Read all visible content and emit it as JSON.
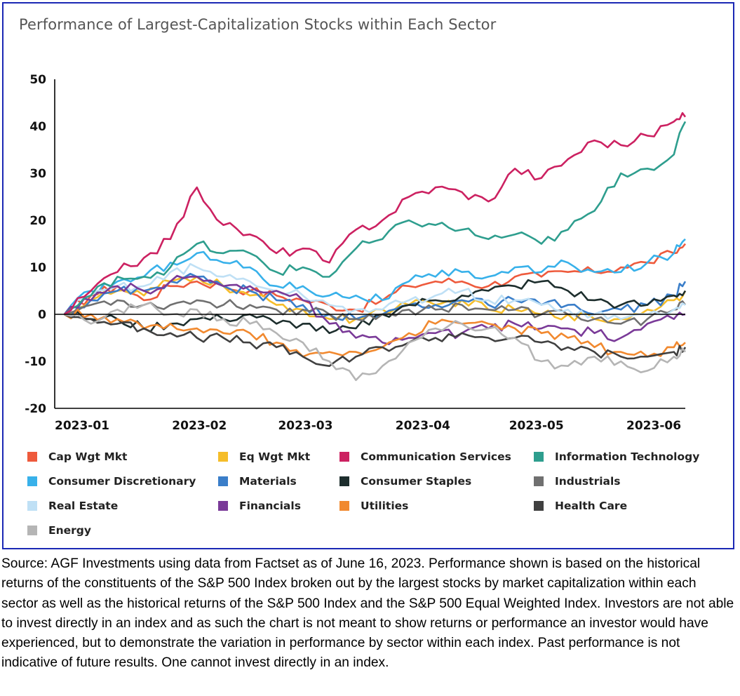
{
  "chart_data": {
    "type": "line",
    "title": "Performance of Largest-Capitalization Stocks within Each Sector",
    "xlabel": "",
    "ylabel": "",
    "ylim": [
      -20,
      50
    ],
    "yticks": [
      50,
      40,
      30,
      20,
      10,
      0,
      -10,
      -20
    ],
    "xticks": [
      "2023-01",
      "2023-02",
      "2023-03",
      "2023-04",
      "2023-05",
      "2023-06"
    ],
    "x": [
      "2023-01-03",
      "2023-01-10",
      "2023-01-17",
      "2023-01-24",
      "2023-01-31",
      "2023-02-07",
      "2023-02-14",
      "2023-02-21",
      "2023-02-28",
      "2023-03-07",
      "2023-03-14",
      "2023-03-21",
      "2023-03-28",
      "2023-04-04",
      "2023-04-11",
      "2023-04-18",
      "2023-04-25",
      "2023-05-02",
      "2023-05-09",
      "2023-05-16",
      "2023-05-23",
      "2023-05-30",
      "2023-06-06",
      "2023-06-13",
      "2023-06-16"
    ],
    "grid": false,
    "legend_position": "bottom",
    "series": [
      {
        "name": "Cap Wgt Mkt",
        "color": "#ee5a3c",
        "values": [
          0,
          4,
          6,
          3,
          6,
          7,
          6,
          5,
          4,
          3,
          2,
          1,
          3,
          6,
          7,
          7,
          6,
          8,
          8,
          9,
          9,
          10,
          11,
          13,
          15
        ]
      },
      {
        "name": "Eq Wgt Mkt",
        "color": "#f5bd2a",
        "values": [
          0,
          3,
          5,
          4,
          7,
          8,
          6,
          4,
          2,
          1,
          -1,
          -1,
          1,
          2,
          2,
          3,
          1,
          1,
          0,
          0,
          -1,
          -1,
          1,
          3,
          5
        ]
      },
      {
        "name": "Communication Services",
        "color": "#cc2161",
        "values": [
          0,
          5,
          9,
          12,
          16,
          27,
          19,
          17,
          13,
          14,
          11,
          18,
          20,
          25,
          27,
          26,
          24,
          31,
          29,
          33,
          37,
          36,
          38,
          41,
          42
        ]
      },
      {
        "name": "Information Technology",
        "color": "#2e9e8e",
        "values": [
          0,
          4,
          8,
          8,
          10,
          15,
          13,
          13,
          9,
          10,
          8,
          14,
          16,
          20,
          19,
          18,
          16,
          17,
          15,
          18,
          22,
          30,
          31,
          34,
          41
        ]
      },
      {
        "name": "Consumer Discretionary",
        "color": "#38b1ea",
        "values": [
          0,
          5,
          7,
          8,
          11,
          13,
          11,
          10,
          6,
          6,
          4,
          4,
          3,
          7,
          8,
          9,
          8,
          10,
          9,
          11,
          9,
          9,
          11,
          13,
          16
        ]
      },
      {
        "name": "Materials",
        "color": "#3a7ec9",
        "values": [
          0,
          3,
          5,
          5,
          7,
          8,
          6,
          5,
          3,
          2,
          0,
          -1,
          0,
          2,
          2,
          3,
          2,
          3,
          2,
          2,
          0,
          1,
          2,
          4,
          7
        ]
      },
      {
        "name": "Consumer Staples",
        "color": "#1d2e2d",
        "values": [
          0,
          -1,
          -1,
          -3,
          -2,
          -1,
          -1,
          0,
          -2,
          -2,
          -4,
          -3,
          0,
          2,
          3,
          4,
          5,
          6,
          7,
          5,
          3,
          2,
          2,
          4,
          5
        ]
      },
      {
        "name": "Industrials",
        "color": "#707070",
        "values": [
          0,
          2,
          3,
          2,
          2,
          3,
          2,
          2,
          1,
          1,
          0,
          -1,
          0,
          1,
          1,
          2,
          1,
          1,
          0,
          0,
          -1,
          -2,
          -1,
          1,
          2
        ]
      },
      {
        "name": "Real Estate",
        "color": "#bfe0f5",
        "values": [
          0,
          4,
          6,
          6,
          9,
          10,
          8,
          7,
          5,
          4,
          2,
          1,
          1,
          3,
          4,
          5,
          3,
          3,
          2,
          1,
          0,
          -1,
          0,
          1,
          2
        ]
      },
      {
        "name": "Financials",
        "color": "#7a3a98",
        "values": [
          0,
          3,
          6,
          5,
          7,
          8,
          6,
          6,
          5,
          3,
          -2,
          -5,
          -6,
          -5,
          -4,
          -4,
          -3,
          -2,
          -3,
          -3,
          -4,
          -5,
          -2,
          -1,
          0
        ]
      },
      {
        "name": "Utilities",
        "color": "#f1892f",
        "values": [
          0,
          0,
          -1,
          -3,
          -2,
          -3,
          -4,
          -4,
          -6,
          -9,
          -8,
          -8,
          -7,
          -4,
          -2,
          -2,
          -2,
          -3,
          -4,
          -5,
          -7,
          -8,
          -9,
          -7,
          -6
        ]
      },
      {
        "name": "Health Care",
        "color": "#404040",
        "values": [
          0,
          -1,
          -2,
          -3,
          -4,
          -5,
          -5,
          -6,
          -7,
          -9,
          -11,
          -9,
          -7,
          -6,
          -5,
          -4,
          -5,
          -5,
          -6,
          -7,
          -8,
          -9,
          -9,
          -8,
          -7
        ]
      },
      {
        "name": "Energy",
        "color": "#b5b5b5",
        "values": [
          0,
          -2,
          1,
          2,
          0,
          1,
          -1,
          -2,
          -4,
          -6,
          -10,
          -14,
          -11,
          -6,
          -3,
          -2,
          -3,
          -5,
          -10,
          -11,
          -9,
          -10,
          -12,
          -9,
          -8
        ]
      }
    ]
  },
  "source_note": "Source: AGF Investments using data from Factset as of June 16, 2023. Performance shown is based on the historical returns of the constituents of the S&P 500 Index broken out by the largest stocks by market capitalization within each sector as well as the historical returns of the S&P 500 Index and the S&P 500 Equal Weighted Index. Investors are not able to invest directly in an index and as such the chart is not meant to show returns or performance an investor would have experienced, but to demonstrate the variation in performance by sector within each index.  Past performance is not indicative of future results. One cannot invest directly in an index."
}
